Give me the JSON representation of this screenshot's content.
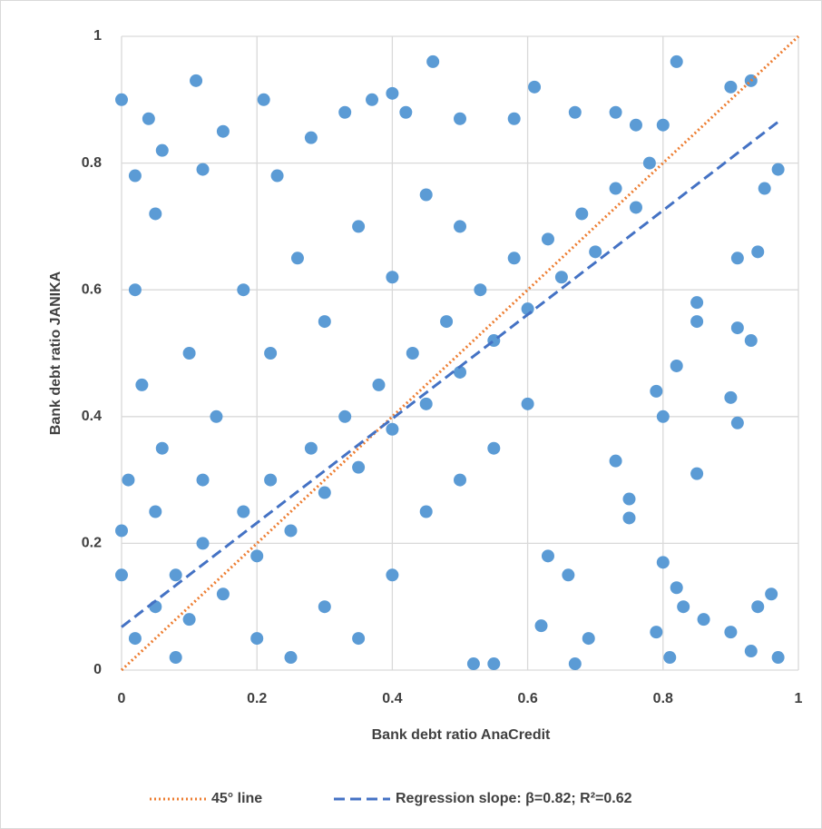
{
  "chart_data": {
    "type": "scatter",
    "xlabel": "Bank debt ratio AnaCredit",
    "ylabel": "Bank debt ratio JANIKA",
    "xlim": [
      0,
      1
    ],
    "ylim": [
      0,
      1
    ],
    "xticks": [
      0,
      0.2,
      0.4,
      0.6,
      0.8,
      1
    ],
    "yticks": [
      0,
      0.2,
      0.4,
      0.6,
      0.8,
      1
    ],
    "grid": true,
    "legend": "bottom",
    "series": [
      {
        "type": "scatter",
        "color": "#5b9bd5",
        "x": [
          0,
          0.46,
          0.11,
          0.21,
          0.37,
          0.4,
          0.82,
          0.9,
          0.93,
          0.97,
          0.95,
          0.94,
          0.91,
          0.91,
          0.93,
          0.9,
          0.91,
          0.85,
          0.8,
          0.82,
          0.83,
          0.79,
          0.81,
          0.86,
          0.9,
          0.93,
          0.96,
          0.94,
          0.97,
          0.67,
          0.55,
          0.52,
          0.62,
          0.69,
          0.66,
          0.63,
          0.75,
          0.75,
          0.73,
          0.79,
          0.8,
          0.82,
          0.85,
          0.85,
          0.04,
          0.06,
          0.15,
          0.28,
          0.33,
          0.42,
          0.5,
          0.58,
          0.61,
          0.67,
          0.73,
          0.76,
          0.8,
          0.05,
          0.02,
          0.12,
          0.23,
          0.02,
          0.05,
          0.08,
          0.1,
          0.12,
          0.15,
          0.18,
          0.2,
          0.22,
          0.25,
          0.28,
          0.3,
          0.33,
          0.35,
          0.38,
          0.4,
          0.43,
          0.45,
          0.48,
          0.5,
          0.53,
          0.55,
          0.58,
          0.6,
          0.63,
          0.65,
          0.68,
          0.7,
          0.73,
          0.76,
          0.78,
          0.01,
          0.03,
          0.02,
          0.06,
          0.1,
          0.14,
          0.18,
          0.22,
          0.26,
          0.3,
          0.35,
          0.4,
          0.45,
          0.5,
          0.08,
          0.2,
          0.3,
          0.4,
          0.45,
          0.5,
          0.55,
          0.6,
          0.25,
          0.35,
          0,
          0,
          0.05,
          0.12
        ],
        "values": [
          0.9,
          0.96,
          0.93,
          0.9,
          0.9,
          0.91,
          0.96,
          0.92,
          0.93,
          0.79,
          0.76,
          0.66,
          0.65,
          0.54,
          0.52,
          0.43,
          0.39,
          0.31,
          0.17,
          0.13,
          0.1,
          0.06,
          0.02,
          0.08,
          0.06,
          0.03,
          0.12,
          0.1,
          0.02,
          0.01,
          0.01,
          0.01,
          0.07,
          0.05,
          0.15,
          0.18,
          0.24,
          0.27,
          0.33,
          0.44,
          0.4,
          0.48,
          0.58,
          0.55,
          0.87,
          0.82,
          0.85,
          0.84,
          0.88,
          0.88,
          0.87,
          0.87,
          0.92,
          0.88,
          0.88,
          0.86,
          0.86,
          0.72,
          0.78,
          0.79,
          0.78,
          0.05,
          0.1,
          0.15,
          0.08,
          0.2,
          0.12,
          0.25,
          0.18,
          0.3,
          0.22,
          0.35,
          0.28,
          0.4,
          0.32,
          0.45,
          0.38,
          0.5,
          0.42,
          0.55,
          0.47,
          0.6,
          0.52,
          0.65,
          0.57,
          0.68,
          0.62,
          0.72,
          0.66,
          0.76,
          0.73,
          0.8,
          0.3,
          0.45,
          0.6,
          0.35,
          0.5,
          0.4,
          0.6,
          0.5,
          0.65,
          0.55,
          0.7,
          0.62,
          0.75,
          0.7,
          0.02,
          0.05,
          0.1,
          0.15,
          0.25,
          0.3,
          0.35,
          0.42,
          0.02,
          0.05,
          0.15,
          0.22,
          0.25,
          0.3
        ]
      },
      {
        "type": "line",
        "name": "45° line",
        "color": "#ed7d31",
        "style": "dotted",
        "x": [
          0,
          1
        ],
        "values": [
          0,
          1
        ]
      },
      {
        "type": "line",
        "name": "Regression slope: β=0.82; R²=0.62",
        "color": "#4472c4",
        "style": "dashed",
        "x": [
          0,
          0.97
        ],
        "values": [
          0.068,
          0.865
        ]
      }
    ]
  }
}
